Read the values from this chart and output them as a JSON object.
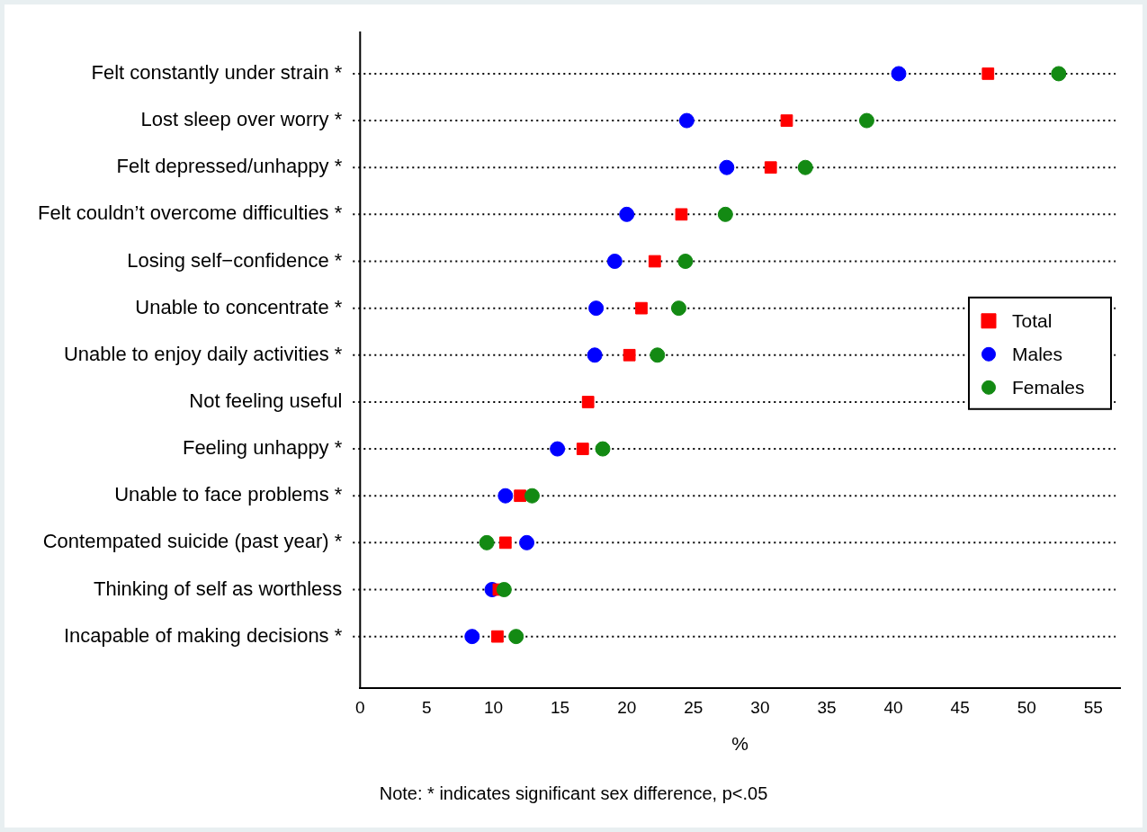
{
  "chart_data": {
    "type": "scatter",
    "orientation": "horizontal",
    "xlabel": "%",
    "annotations": [
      "Note: * indicates significant sex difference, p<.05"
    ],
    "categories": [
      "Felt constantly under strain *",
      "Lost sleep over worry *",
      "Felt depressed/unhappy *",
      "Felt couldn’t overcome difficulties *",
      "Losing self−confidence *",
      "Unable to concentrate *",
      "Unable to enjoy daily activities *",
      "Not feeling useful",
      "Feeling unhappy *",
      "Unable to face problems *",
      "Contempated suicide (past year) *",
      "Thinking of self as worthless",
      "Incapable of making decisions *"
    ],
    "series": [
      {
        "name": "Total",
        "color": "#ff0000",
        "marker": "square",
        "values": [
          47.1,
          32.0,
          30.8,
          24.1,
          22.1,
          21.1,
          20.2,
          17.1,
          16.7,
          12.0,
          10.9,
          10.4,
          10.3
        ]
      },
      {
        "name": "Males",
        "color": "#0000ff",
        "marker": "circle",
        "values": [
          40.4,
          24.5,
          27.5,
          20.0,
          19.1,
          17.7,
          17.6,
          null,
          14.8,
          10.9,
          12.5,
          9.9,
          8.4
        ]
      },
      {
        "name": "Females",
        "color": "#138a13",
        "marker": "circle",
        "values": [
          52.4,
          38.0,
          33.4,
          27.4,
          24.4,
          23.9,
          22.3,
          null,
          18.2,
          12.9,
          9.5,
          10.8,
          11.7
        ]
      }
    ],
    "xlim": [
      0,
      57
    ],
    "xticks": [
      0,
      5,
      10,
      15,
      20,
      25,
      30,
      35,
      40,
      45,
      50,
      55
    ],
    "grid": "y",
    "line_style": "dotted",
    "legend": "right"
  }
}
